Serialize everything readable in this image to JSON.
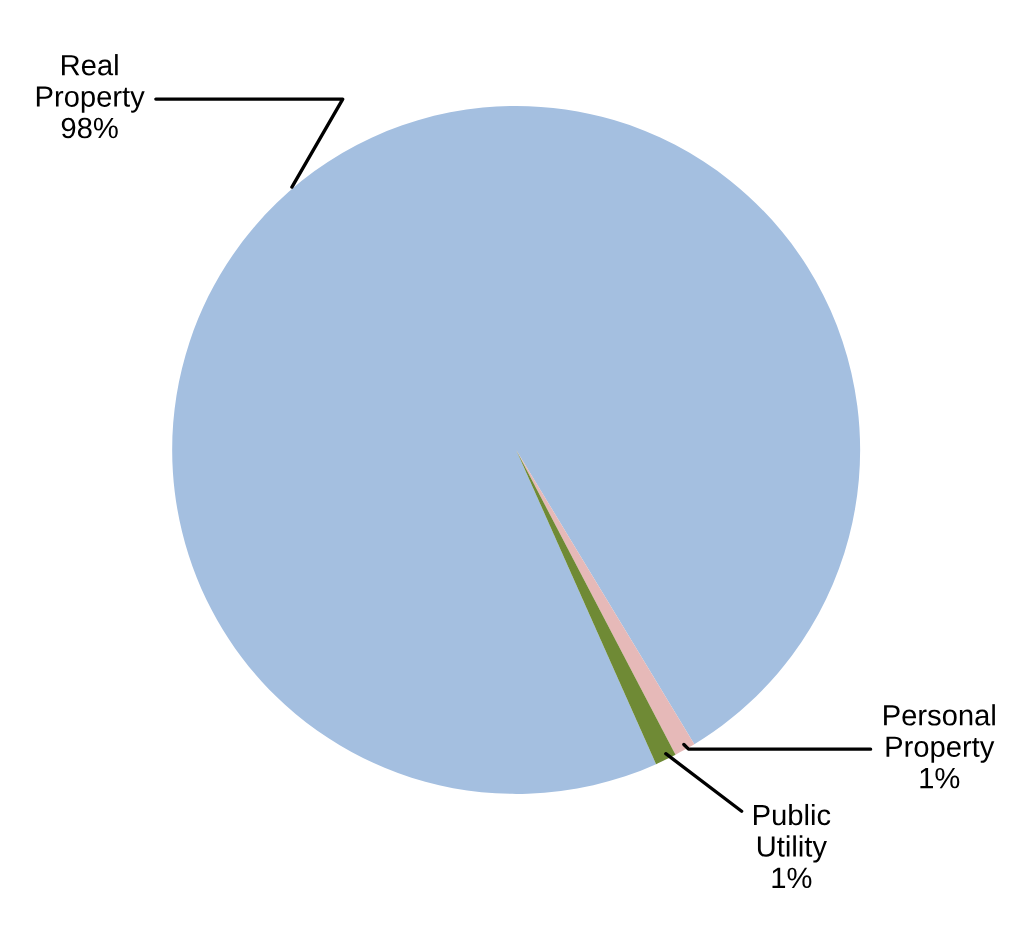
{
  "chart_data": {
    "type": "pie",
    "categories": [
      "Real Property",
      "Personal Property",
      "Public Utility"
    ],
    "values": [
      98,
      1,
      1
    ],
    "value_labels": [
      "98%",
      "1%",
      "1%"
    ],
    "colors": [
      "#a4bfe0",
      "#e6b9b8",
      "#6f8a35"
    ]
  }
}
